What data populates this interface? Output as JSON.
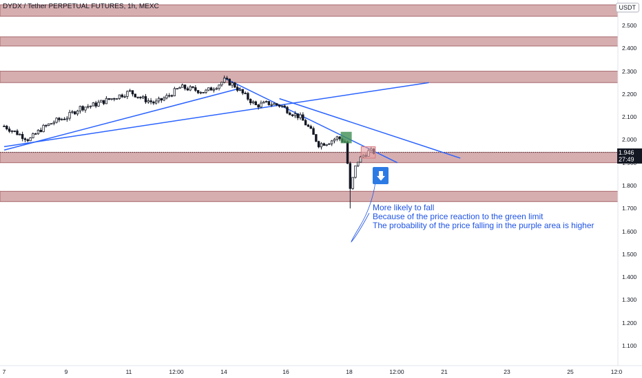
{
  "header": {
    "symbol_title": "DYDX / Tether PERPETUAL FUTURES, 1h, MEXC",
    "currency": "USDT"
  },
  "price_tag": {
    "price": "1.946",
    "countdown": "27:49"
  },
  "annotation": {
    "lines": [
      "More likely to fall",
      "Because of the price reaction to the green limit",
      "The probability of the price falling in the purple area is higher"
    ],
    "arrow_icon": "down-arrow-icon",
    "color": "#1e53e5"
  },
  "colors": {
    "zone": "#c58b8f",
    "trendline": "#2962ff",
    "green_box": "#3e8e52",
    "red_box": "#e7a2a5",
    "candle_up": "#131722",
    "candle_down": "#131722"
  },
  "chart_data": {
    "type": "candlestick",
    "y_ticks": [
      "2.500",
      "2.400",
      "2.300",
      "2.200",
      "2.100",
      "2.000",
      "1.900",
      "1.800",
      "1.700",
      "1.600",
      "1.500",
      "1.400",
      "1.300",
      "1.200",
      "1.100"
    ],
    "x_ticks": [
      "7",
      "9",
      "11",
      "12:00",
      "14",
      "16",
      "18",
      "12:00",
      "21",
      "23",
      "25",
      "12:0"
    ],
    "ylim": [
      1.05,
      2.55
    ],
    "resistance_zones": [
      {
        "from": 2.54,
        "to": 2.59
      },
      {
        "from": 2.41,
        "to": 2.45
      },
      {
        "from": 2.25,
        "to": 2.3
      },
      {
        "from": 1.9,
        "to": 1.945
      },
      {
        "from": 1.73,
        "to": 1.775
      }
    ],
    "trendlines": [
      {
        "from": [
          "Jun 7",
          1.955
        ],
        "to": [
          "Jun 14 12:00",
          2.225
        ]
      },
      {
        "from": [
          "Jun 7",
          1.97
        ],
        "to": [
          "Jun 20 12:00",
          2.25
        ]
      },
      {
        "from": [
          "Jun 14",
          2.27
        ],
        "to": [
          "Jun 19 12:00",
          1.9
        ]
      },
      {
        "from": [
          "Jun 15 18:00",
          2.18
        ],
        "to": [
          "Jun 21 12:00",
          1.92
        ]
      }
    ],
    "price_path": [
      [
        7.0,
        2.06
      ],
      [
        7.4,
        2.03
      ],
      [
        7.8,
        2.0
      ],
      [
        8.2,
        2.05
      ],
      [
        8.6,
        2.08
      ],
      [
        9.0,
        2.1
      ],
      [
        9.4,
        2.14
      ],
      [
        9.8,
        2.15
      ],
      [
        10.2,
        2.17
      ],
      [
        10.6,
        2.19
      ],
      [
        11.0,
        2.21
      ],
      [
        11.4,
        2.18
      ],
      [
        11.8,
        2.16
      ],
      [
        12.2,
        2.19
      ],
      [
        12.6,
        2.23
      ],
      [
        13.0,
        2.22
      ],
      [
        13.4,
        2.21
      ],
      [
        13.8,
        2.24
      ],
      [
        14.0,
        2.26
      ],
      [
        14.3,
        2.24
      ],
      [
        14.6,
        2.2
      ],
      [
        15.0,
        2.15
      ],
      [
        15.4,
        2.16
      ],
      [
        15.8,
        2.15
      ],
      [
        16.1,
        2.12
      ],
      [
        16.4,
        2.1
      ],
      [
        16.7,
        2.05
      ],
      [
        17.0,
        1.98
      ],
      [
        17.3,
        1.99
      ],
      [
        17.6,
        2.01
      ],
      [
        17.85,
        1.99
      ],
      [
        18.0,
        1.78
      ],
      [
        18.2,
        1.9
      ],
      [
        18.4,
        1.93
      ],
      [
        18.6,
        1.95
      ],
      [
        18.8,
        1.946
      ]
    ],
    "green_box": {
      "x_from": 17.7,
      "x_to": 18.05,
      "y_from": 1.985,
      "y_to": 2.035
    },
    "red_box": {
      "x_from": 18.35,
      "x_to": 18.8,
      "y_from": 1.92,
      "y_to": 1.97
    },
    "current_price": 1.946
  }
}
